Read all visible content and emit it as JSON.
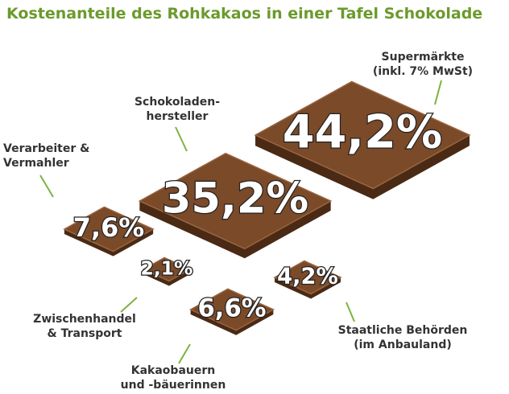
{
  "chart_data": {
    "type": "pictorial",
    "title": "Kostenanteile des Rohkakaos in einer Tafel Schokolade",
    "categories": [
      "Supermärkte\n(inkl. 7% MwSt)",
      "Schokoladen-\nhersteller",
      "Verarbeiter &\nVermahler",
      "Zwischenhandel\n& Transport",
      "Kakaobauern\nund -bäuerinnen",
      "Staatliche Behörden\n(im Anbauland)"
    ],
    "values": [
      44.2,
      35.2,
      7.6,
      2.1,
      6.6,
      4.2
    ],
    "value_labels": [
      "44,2%",
      "35,2%",
      "7,6%",
      "2,1%",
      "6,6%",
      "4,2%"
    ],
    "color": "#7b4a28"
  }
}
